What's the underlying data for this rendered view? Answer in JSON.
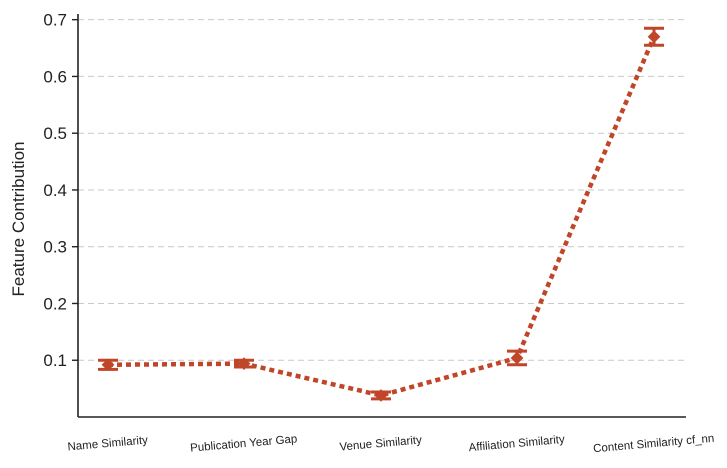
{
  "chart_data": {
    "type": "line",
    "title": "",
    "xlabel": "",
    "ylabel": "Feature Contribution",
    "categories": [
      "Name Similarity",
      "Publication Year Gap",
      "Venue Similarity",
      "Affiliation Similarity",
      "Content Similarity cf_nn"
    ],
    "series": [
      {
        "values": [
          0.092,
          0.094,
          0.038,
          0.104,
          0.67
        ],
        "errors": [
          0.008,
          0.006,
          0.006,
          0.012,
          0.015
        ]
      }
    ],
    "yticks": [
      0.1,
      0.2,
      0.3,
      0.4,
      0.5,
      0.6,
      0.7
    ],
    "ylim": [
      0.0,
      0.71
    ],
    "grid": "y-dashed",
    "legend": "none",
    "color": "#c0462a"
  }
}
